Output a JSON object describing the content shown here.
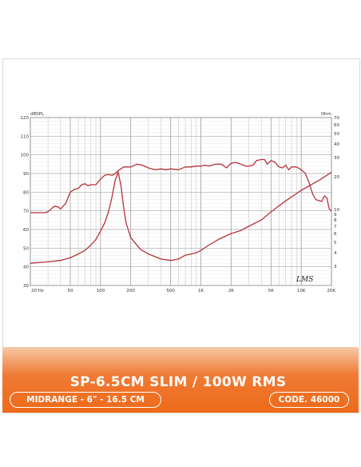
{
  "chart_data": {
    "type": "line",
    "y_left_label": "dBSPL",
    "y_right_label": "Ohm",
    "y_left_ticks": [
      "120",
      "110",
      "100",
      "90",
      "80",
      "70",
      "60",
      "50",
      "40",
      "30"
    ],
    "y_right_ticks": [
      "70",
      "60",
      "50",
      "40",
      "30",
      "20",
      "10",
      "9",
      "8",
      "7",
      "6",
      "5",
      "4",
      "3"
    ],
    "x_tick_labels": [
      "20 Hz",
      "50",
      "100",
      "200",
      "500",
      "1K",
      "2K",
      "5K",
      "10K",
      "20K"
    ],
    "x_tick_values": [
      20,
      50,
      100,
      200,
      500,
      1000,
      2000,
      5000,
      10000,
      20000
    ],
    "x_scale": "log",
    "xlim": [
      20,
      20000
    ],
    "ylim_left": [
      30,
      120
    ],
    "ylim_right": [
      2,
      70
    ],
    "grid": true,
    "watermark": "LMS",
    "series": [
      {
        "role": "spl",
        "axis": "left",
        "color": "#b5323c",
        "x": [
          20,
          25,
          28,
          30,
          33,
          35,
          38,
          40,
          45,
          50,
          55,
          60,
          65,
          70,
          75,
          80,
          90,
          100,
          110,
          120,
          130,
          140,
          150,
          170,
          200,
          230,
          260,
          300,
          350,
          400,
          450,
          500,
          600,
          700,
          800,
          900,
          1000,
          1100,
          1200,
          1400,
          1600,
          1800,
          2000,
          2200,
          2500,
          2800,
          3000,
          3300,
          3600,
          4000,
          4300,
          4600,
          5000,
          5500,
          6000,
          6500,
          7000,
          7500,
          8000,
          9000,
          10000,
          11000,
          12000,
          13000,
          14000,
          15000,
          16000,
          17000,
          18000,
          19000,
          20000
        ],
        "y": [
          69,
          69,
          69,
          69.5,
          71.5,
          72.5,
          72,
          71,
          74,
          80,
          81.5,
          82,
          84,
          84.5,
          83.5,
          84,
          84,
          87,
          89,
          89.5,
          89,
          90,
          91.5,
          93.5,
          93.5,
          95,
          94.5,
          93,
          92,
          92.5,
          92,
          92.5,
          92,
          93.5,
          93.5,
          94,
          94,
          94.5,
          94,
          95,
          95,
          93,
          95.5,
          96,
          95,
          94,
          94,
          94.5,
          97,
          97.5,
          97.5,
          95,
          97,
          96,
          93.5,
          93,
          94.5,
          92,
          93.5,
          93.5,
          92,
          90,
          85,
          79,
          76,
          75.5,
          75,
          78,
          77,
          71,
          70
        ]
      },
      {
        "role": "impedance",
        "axis": "right",
        "color": "#b5323c",
        "x": [
          20,
          30,
          40,
          50,
          60,
          70,
          80,
          90,
          100,
          110,
          120,
          130,
          140,
          150,
          160,
          170,
          180,
          200,
          250,
          300,
          400,
          500,
          600,
          700,
          800,
          900,
          1000,
          1200,
          1500,
          2000,
          2500,
          3000,
          4000,
          5000,
          7000,
          10000,
          15000,
          20000
        ],
        "y": [
          3.2,
          3.3,
          3.4,
          3.6,
          3.9,
          4.2,
          4.7,
          5.3,
          6.3,
          7.5,
          9.5,
          13.0,
          18.5,
          22.0,
          16.5,
          10.5,
          7.5,
          5.5,
          4.3,
          3.9,
          3.5,
          3.4,
          3.5,
          3.8,
          3.9,
          4.0,
          4.2,
          4.7,
          5.3,
          6.0,
          6.4,
          7.0,
          8.0,
          9.5,
          12.0,
          15.0,
          18.5,
          22.0
        ]
      }
    ]
  },
  "banner": {
    "title": "SP-6.5CM SLIM / 100W RMS",
    "subtitle": "MIDRANGE - 6\" - 16.5 CM",
    "code": "CODE. 46000",
    "color_top": "#f7c9a6",
    "color_bottom": "#ee6a1a"
  }
}
